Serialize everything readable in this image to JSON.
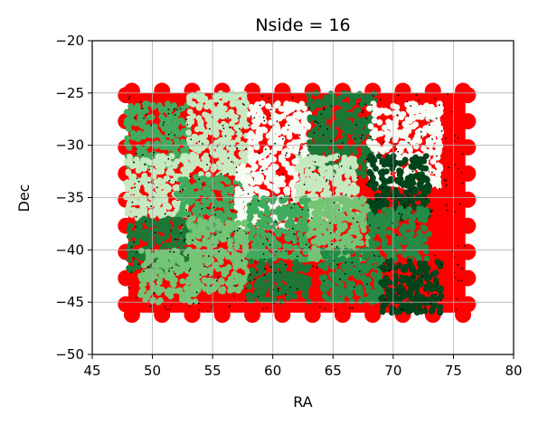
{
  "chart_data": {
    "type": "scatter",
    "title": "Nside = 16",
    "xlabel": "RA",
    "ylabel": "Dec",
    "xlim": [
      45,
      80
    ],
    "ylim": [
      -50,
      -20
    ],
    "xticks": [
      45,
      50,
      55,
      60,
      65,
      70,
      75,
      80
    ],
    "yticks": [
      -50,
      -45,
      -40,
      -35,
      -30,
      -25,
      -20
    ],
    "xtick_labels": [
      "45",
      "50",
      "55",
      "60",
      "65",
      "70",
      "75",
      "80"
    ],
    "ytick_labels": [
      "−50",
      "−45",
      "−40",
      "−35",
      "−30",
      "−25",
      "−20"
    ],
    "grid": true,
    "footprint": {
      "color": "#ff0000",
      "ra_range": [
        48,
        76
      ],
      "dec_range": [
        -46,
        -25
      ]
    },
    "patches": [
      {
        "ra": [
          47.8,
          53
        ],
        "dec": [
          -32,
          -26
        ],
        "color": "#41ab5d"
      },
      {
        "ra": [
          53,
          58
        ],
        "dec": [
          -33,
          -25
        ],
        "color": "#c7e9c0"
      },
      {
        "ra": [
          58,
          63
        ],
        "dec": [
          -32,
          -26
        ],
        "color": "#f7fcf5"
      },
      {
        "ra": [
          63,
          68.5
        ],
        "dec": [
          -33,
          -25
        ],
        "color": "#1b7837"
      },
      {
        "ra": [
          68,
          74
        ],
        "dec": [
          -34,
          -26
        ],
        "color": "#f7fcf5"
      },
      {
        "ra": [
          47.8,
          53
        ],
        "dec": [
          -37,
          -31
        ],
        "color": "#c7e9c0"
      },
      {
        "ra": [
          52,
          58
        ],
        "dec": [
          -39,
          -33
        ],
        "color": "#41ab5d"
      },
      {
        "ra": [
          57,
          62
        ],
        "dec": [
          -38,
          -32
        ],
        "color": "#f7fcf5"
      },
      {
        "ra": [
          62,
          67
        ],
        "dec": [
          -37,
          -31
        ],
        "color": "#c7e9c0"
      },
      {
        "ra": [
          68,
          73
        ],
        "dec": [
          -37,
          -31
        ],
        "color": "#00441b"
      },
      {
        "ra": [
          48,
          53
        ],
        "dec": [
          -42,
          -37
        ],
        "color": "#1b7837"
      },
      {
        "ra": [
          53,
          58
        ],
        "dec": [
          -44,
          -37
        ],
        "color": "#74c476"
      },
      {
        "ra": [
          58,
          63
        ],
        "dec": [
          -41,
          -35
        ],
        "color": "#41ab5d"
      },
      {
        "ra": [
          63,
          68
        ],
        "dec": [
          -41,
          -35
        ],
        "color": "#74c476"
      },
      {
        "ra": [
          68,
          73
        ],
        "dec": [
          -41,
          -36
        ],
        "color": "#238b45"
      },
      {
        "ra": [
          49,
          54
        ],
        "dec": [
          -45,
          -40
        ],
        "color": "#74c476"
      },
      {
        "ra": [
          58,
          63
        ],
        "dec": [
          -45,
          -41
        ],
        "color": "#1b7837"
      },
      {
        "ra": [
          64,
          69
        ],
        "dec": [
          -45,
          -40
        ],
        "color": "#238b45"
      },
      {
        "ra": [
          69,
          74
        ],
        "dec": [
          -46,
          -41
        ],
        "color": "#00441b"
      }
    ]
  }
}
